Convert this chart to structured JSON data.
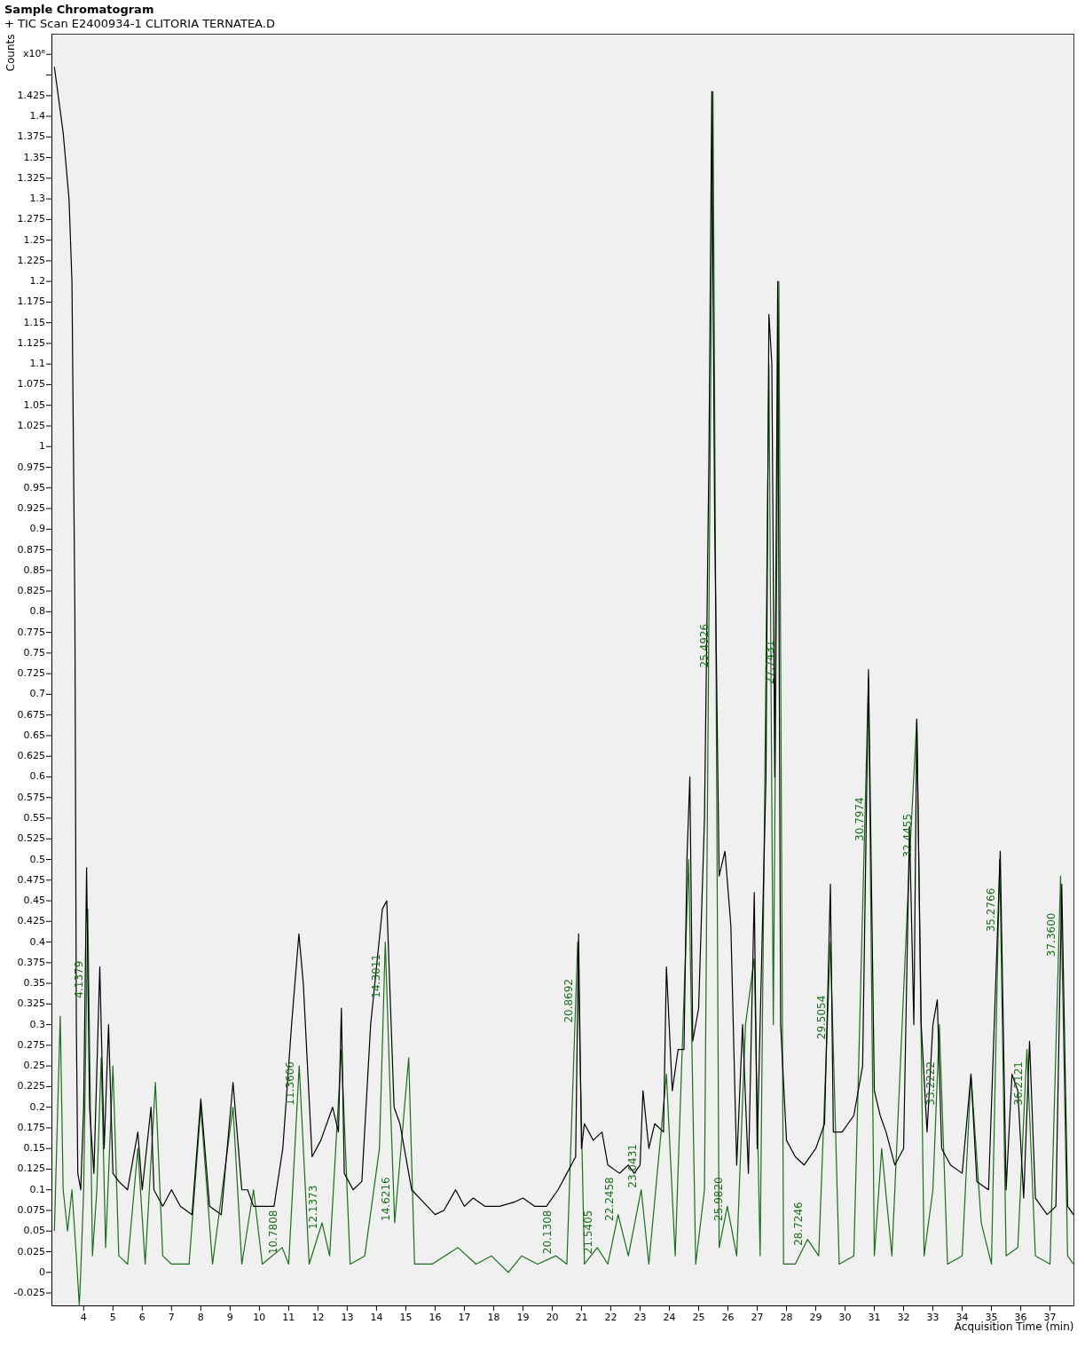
{
  "chart_data": {
    "type": "line",
    "title": "Sample Chromatogram",
    "subtitle": "+ TIC Scan E2400934-1 CLITORIA TERNATEA.D",
    "xlabel": "Acquisition Time (min)",
    "ylabel": "Counts",
    "xlim": [
      2.9,
      37.8
    ],
    "xticks": [
      4,
      5,
      6,
      7,
      8,
      9,
      10,
      11,
      12,
      13,
      14,
      15,
      16,
      17,
      18,
      19,
      20,
      21,
      22,
      23,
      24,
      25,
      26,
      27,
      28,
      29,
      30,
      31,
      32,
      33,
      34,
      35,
      36,
      37
    ],
    "ylim": [
      -0.04,
      1.5
    ],
    "yticks": [
      -0.025,
      0,
      0.025,
      0.05,
      0.075,
      0.1,
      0.125,
      0.15,
      0.175,
      0.2,
      0.225,
      0.25,
      0.275,
      0.3,
      0.325,
      0.35,
      0.375,
      0.4,
      0.425,
      0.45,
      0.475,
      0.5,
      0.525,
      0.55,
      0.575,
      0.6,
      0.625,
      0.65,
      0.675,
      0.7,
      0.725,
      0.75,
      0.775,
      0.8,
      0.825,
      0.85,
      0.875,
      0.9,
      0.925,
      0.95,
      0.975,
      1,
      1.025,
      1.05,
      1.075,
      1.1,
      1.125,
      1.15,
      1.175,
      1.2,
      1.225,
      1.25,
      1.275,
      1.3,
      1.325,
      1.35,
      1.375,
      1.4,
      1.425,
      {
        "value": 1.45,
        "label": null
      },
      {
        "value": 1.475,
        "label": "x10⁸"
      }
    ],
    "grid": false,
    "legend": false,
    "marker": "none",
    "line_style": "solid",
    "series": [
      {
        "color": "#1a6e1a",
        "x": [
          3.0,
          3.2,
          3.3,
          3.45,
          3.6,
          3.75,
          3.85,
          3.9,
          4.0,
          4.14,
          4.3,
          4.45,
          4.6,
          4.75,
          5.0,
          5.2,
          5.5,
          5.85,
          6.1,
          6.45,
          6.7,
          7.0,
          7.6,
          8.0,
          8.4,
          9.1,
          9.4,
          9.8,
          10.1,
          10.78,
          11.0,
          11.36,
          11.7,
          12.14,
          12.4,
          12.8,
          13.1,
          13.6,
          14.1,
          14.3,
          14.5,
          14.62,
          15.1,
          15.3,
          15.9,
          16.78,
          17.4,
          17.92,
          18.5,
          18.96,
          19.5,
          20.13,
          20.5,
          20.87,
          21.1,
          21.54,
          21.9,
          22.25,
          22.6,
          23.04,
          23.3,
          23.9,
          24.2,
          24.66,
          24.9,
          25.2,
          25.49,
          25.7,
          25.98,
          26.3,
          26.6,
          26.9,
          27.1,
          27.4,
          27.55,
          27.74,
          27.9,
          28.3,
          28.72,
          29.1,
          29.5,
          29.8,
          30.3,
          30.8,
          31.0,
          31.25,
          31.6,
          32.2,
          32.45,
          32.7,
          33.0,
          33.22,
          33.5,
          34.0,
          34.3,
          34.65,
          35.0,
          35.28,
          35.5,
          35.9,
          36.21,
          36.5,
          37.0,
          37.36,
          37.6,
          37.8
        ],
        "values": [
          0.05,
          0.31,
          0.1,
          0.05,
          0.1,
          0.02,
          -0.04,
          0.0,
          0.1,
          0.44,
          0.02,
          0.1,
          0.26,
          0.03,
          0.25,
          0.02,
          0.01,
          0.15,
          0.01,
          0.23,
          0.02,
          0.01,
          0.01,
          0.2,
          0.01,
          0.2,
          0.01,
          0.1,
          0.01,
          0.03,
          0.01,
          0.25,
          0.01,
          0.06,
          0.02,
          0.27,
          0.01,
          0.02,
          0.15,
          0.4,
          0.18,
          0.06,
          0.26,
          0.01,
          0.01,
          0.03,
          0.01,
          0.02,
          0.0,
          0.02,
          0.01,
          0.02,
          0.01,
          0.4,
          0.01,
          0.03,
          0.01,
          0.07,
          0.02,
          0.1,
          0.01,
          0.24,
          0.02,
          0.5,
          0.01,
          0.1,
          1.43,
          0.03,
          0.08,
          0.02,
          0.3,
          0.38,
          0.02,
          1.1,
          0.3,
          1.2,
          0.01,
          0.01,
          0.04,
          0.02,
          0.4,
          0.01,
          0.02,
          0.72,
          0.02,
          0.15,
          0.02,
          0.5,
          0.67,
          0.02,
          0.1,
          0.3,
          0.01,
          0.02,
          0.24,
          0.06,
          0.01,
          0.5,
          0.02,
          0.03,
          0.27,
          0.02,
          0.01,
          0.48,
          0.02,
          0.01
        ]
      },
      {
        "color": "#000000",
        "x": [
          3.0,
          3.3,
          3.5,
          3.6,
          3.7,
          3.75,
          3.8,
          3.9,
          4.0,
          4.1,
          4.2,
          4.35,
          4.55,
          4.7,
          4.85,
          5.0,
          5.2,
          5.5,
          5.85,
          6.0,
          6.3,
          6.4,
          6.7,
          7.0,
          7.3,
          7.7,
          8.0,
          8.3,
          8.7,
          9.1,
          9.4,
          9.6,
          9.8,
          10.2,
          10.5,
          10.8,
          11.1,
          11.35,
          11.5,
          11.8,
          12.1,
          12.5,
          12.7,
          12.8,
          12.9,
          13.2,
          13.5,
          13.8,
          14.2,
          14.35,
          14.6,
          14.8,
          15.2,
          15.6,
          16.0,
          16.3,
          16.7,
          17.0,
          17.3,
          17.7,
          18.2,
          18.7,
          19.0,
          19.4,
          19.8,
          20.2,
          20.5,
          20.8,
          20.9,
          21.0,
          21.1,
          21.4,
          21.7,
          21.9,
          22.3,
          22.6,
          22.8,
          23.0,
          23.1,
          23.3,
          23.5,
          23.8,
          23.9,
          24.1,
          24.3,
          24.5,
          24.6,
          24.7,
          24.8,
          25.0,
          25.2,
          25.35,
          25.45,
          25.55,
          25.7,
          25.9,
          26.1,
          26.3,
          26.5,
          26.7,
          26.9,
          27.0,
          27.3,
          27.4,
          27.5,
          27.6,
          27.7,
          27.8,
          28.0,
          28.3,
          28.6,
          29.0,
          29.3,
          29.5,
          29.6,
          29.9,
          30.3,
          30.6,
          30.8,
          31.0,
          31.2,
          31.4,
          31.7,
          32.0,
          32.2,
          32.35,
          32.45,
          32.6,
          32.8,
          33.0,
          33.15,
          33.3,
          33.6,
          34.0,
          34.3,
          34.5,
          34.9,
          35.3,
          35.5,
          35.7,
          35.9,
          36.1,
          36.3,
          36.5,
          36.9,
          37.2,
          37.4,
          37.6,
          37.8
        ],
        "values": [
          1.46,
          1.38,
          1.3,
          1.2,
          0.8,
          0.3,
          0.12,
          0.1,
          0.2,
          0.49,
          0.2,
          0.12,
          0.37,
          0.15,
          0.3,
          0.12,
          0.11,
          0.1,
          0.17,
          0.1,
          0.2,
          0.1,
          0.08,
          0.1,
          0.08,
          0.07,
          0.21,
          0.08,
          0.07,
          0.23,
          0.1,
          0.1,
          0.08,
          0.08,
          0.08,
          0.15,
          0.3,
          0.41,
          0.35,
          0.14,
          0.16,
          0.2,
          0.17,
          0.32,
          0.12,
          0.1,
          0.11,
          0.3,
          0.44,
          0.45,
          0.2,
          0.18,
          0.1,
          0.085,
          0.07,
          0.075,
          0.1,
          0.08,
          0.09,
          0.08,
          0.08,
          0.085,
          0.09,
          0.08,
          0.08,
          0.1,
          0.12,
          0.14,
          0.41,
          0.15,
          0.18,
          0.16,
          0.17,
          0.13,
          0.12,
          0.13,
          0.12,
          0.13,
          0.22,
          0.15,
          0.18,
          0.17,
          0.37,
          0.22,
          0.27,
          0.27,
          0.5,
          0.6,
          0.28,
          0.32,
          0.55,
          0.98,
          1.43,
          0.9,
          0.48,
          0.51,
          0.42,
          0.13,
          0.3,
          0.12,
          0.46,
          0.15,
          0.6,
          1.16,
          1.1,
          0.6,
          1.2,
          0.3,
          0.16,
          0.14,
          0.13,
          0.15,
          0.18,
          0.47,
          0.17,
          0.17,
          0.19,
          0.25,
          0.73,
          0.22,
          0.19,
          0.17,
          0.13,
          0.15,
          0.54,
          0.3,
          0.67,
          0.3,
          0.17,
          0.3,
          0.33,
          0.15,
          0.13,
          0.12,
          0.24,
          0.11,
          0.1,
          0.51,
          0.1,
          0.24,
          0.22,
          0.09,
          0.28,
          0.09,
          0.07,
          0.08,
          0.47,
          0.08,
          0.07
        ]
      }
    ],
    "annotations": [
      {
        "text": "4.1379",
        "x": 4.14,
        "y": 0.33
      },
      {
        "text": "10.7808",
        "x": 10.78,
        "y": 0.02
      },
      {
        "text": "11.3606",
        "x": 11.36,
        "y": 0.2
      },
      {
        "text": "12.1373",
        "x": 12.14,
        "y": 0.05
      },
      {
        "text": "14.3011",
        "x": 14.3,
        "y": 0.33
      },
      {
        "text": "14.6216",
        "x": 14.62,
        "y": 0.06
      },
      {
        "text": "20.1308",
        "x": 20.13,
        "y": 0.02
      },
      {
        "text": "20.8692",
        "x": 20.87,
        "y": 0.3
      },
      {
        "text": "21.5405",
        "x": 21.54,
        "y": 0.02
      },
      {
        "text": "22.2458",
        "x": 22.25,
        "y": 0.06
      },
      {
        "text": "23.0431",
        "x": 23.04,
        "y": 0.1
      },
      {
        "text": "25.4926",
        "x": 25.49,
        "y": 0.73
      },
      {
        "text": "25.9820",
        "x": 25.98,
        "y": 0.06
      },
      {
        "text": "27.7431",
        "x": 27.74,
        "y": 0.71
      },
      {
        "text": "28.7246",
        "x": 28.72,
        "y": 0.03
      },
      {
        "text": "29.5054",
        "x": 29.5,
        "y": 0.28
      },
      {
        "text": "30.7974",
        "x": 30.8,
        "y": 0.52
      },
      {
        "text": "32.4455",
        "x": 32.45,
        "y": 0.5
      },
      {
        "text": "33.2222",
        "x": 33.22,
        "y": 0.2
      },
      {
        "text": "35.2766",
        "x": 35.28,
        "y": 0.41
      },
      {
        "text": "36.2121",
        "x": 36.21,
        "y": 0.2
      },
      {
        "text": "37.3600",
        "x": 37.36,
        "y": 0.38
      }
    ]
  }
}
